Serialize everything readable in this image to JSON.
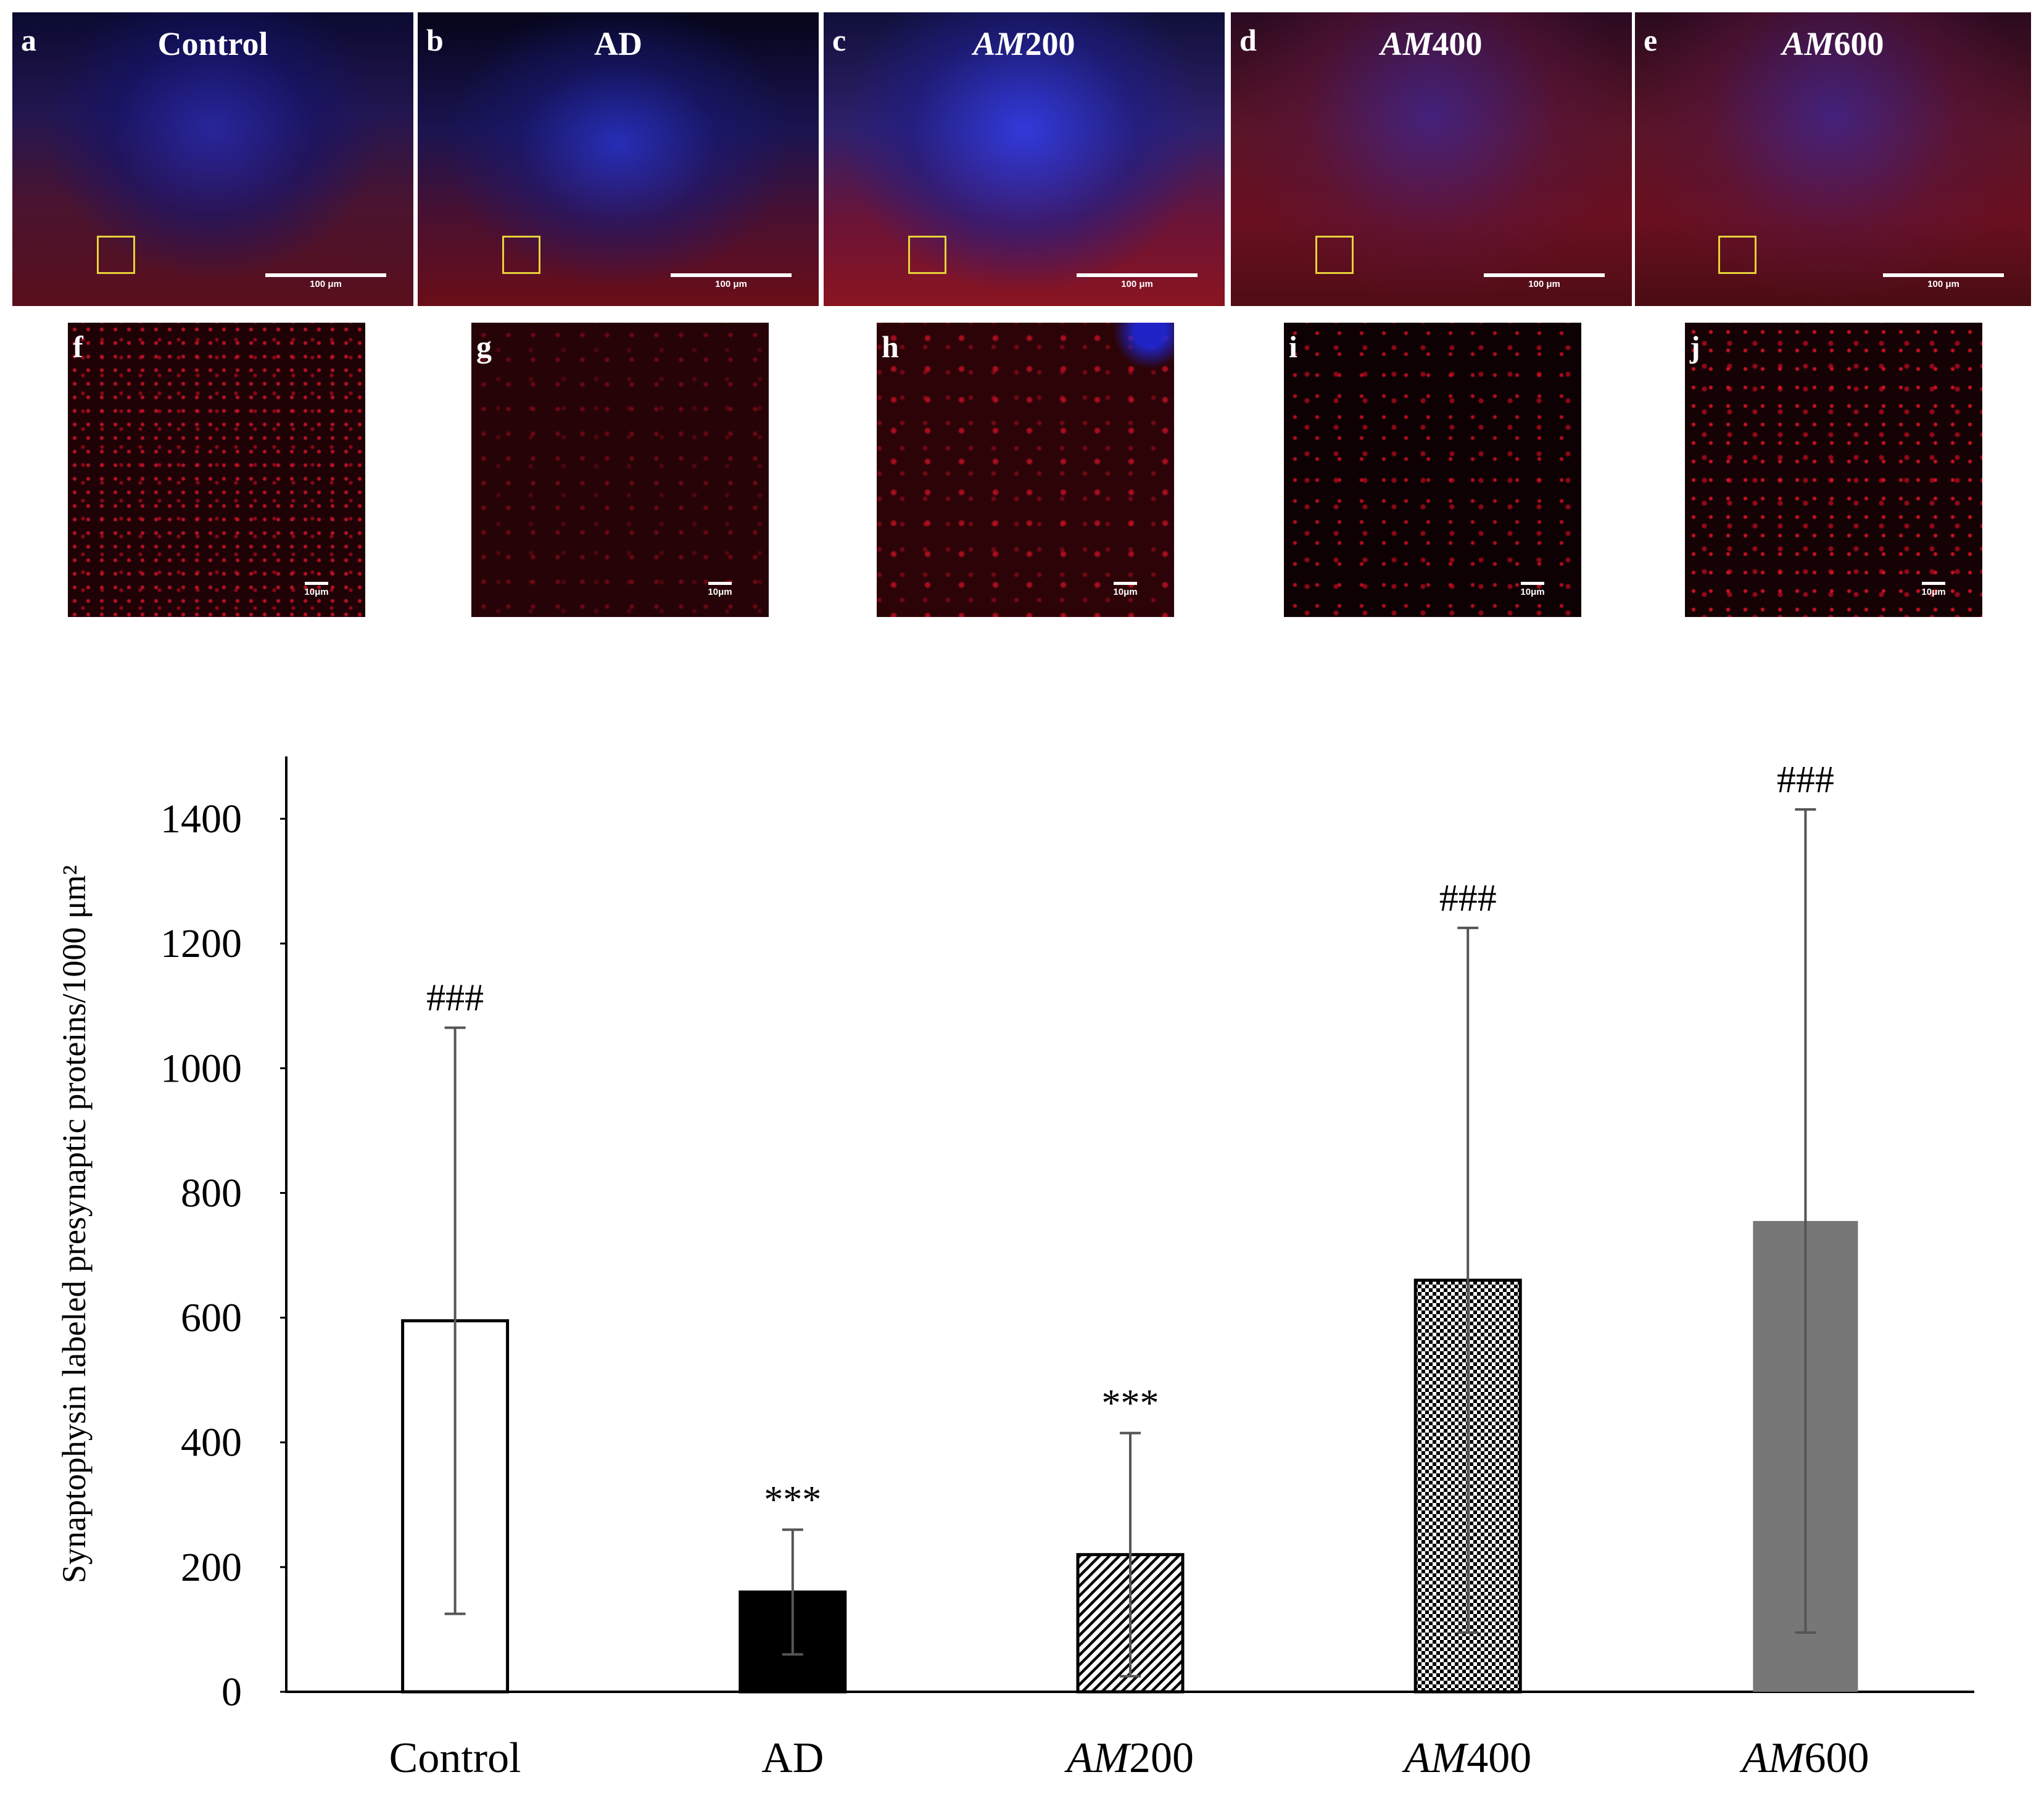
{
  "panels_top": [
    {
      "letter": "a",
      "title": "Control",
      "title_parts": [
        {
          "t": "Control",
          "i": false
        }
      ],
      "scale": "100 μm"
    },
    {
      "letter": "b",
      "title": "AD",
      "title_parts": [
        {
          "t": "AD",
          "i": false
        }
      ],
      "scale": "100 μm"
    },
    {
      "letter": "c",
      "title": "AM200",
      "title_parts": [
        {
          "t": "AM",
          "i": true
        },
        {
          "t": "200",
          "i": false
        }
      ],
      "scale": "100 μm"
    },
    {
      "letter": "d",
      "title": "AM400",
      "title_parts": [
        {
          "t": "AM",
          "i": true
        },
        {
          "t": "400",
          "i": false
        }
      ],
      "scale": "100 μm"
    },
    {
      "letter": "e",
      "title": "AM600",
      "title_parts": [
        {
          "t": "AM",
          "i": true
        },
        {
          "t": "600",
          "i": false
        }
      ],
      "scale": "100 μm"
    }
  ],
  "panels_zoom": [
    {
      "letter": "f",
      "scale": "10μm"
    },
    {
      "letter": "g",
      "scale": "10μm"
    },
    {
      "letter": "h",
      "scale": "10μm"
    },
    {
      "letter": "i",
      "scale": "10μm"
    },
    {
      "letter": "j",
      "scale": "10μm"
    }
  ],
  "chart_data": {
    "type": "bar",
    "categories": [
      "Control",
      "AD",
      "AM200",
      "AM400",
      "AM600"
    ],
    "category_parts": [
      [
        {
          "t": "Control",
          "i": false
        }
      ],
      [
        {
          "t": "AD",
          "i": false
        }
      ],
      [
        {
          "t": "AM",
          "i": true
        },
        {
          "t": "200",
          "i": false
        }
      ],
      [
        {
          "t": "AM",
          "i": true
        },
        {
          "t": "400",
          "i": false
        }
      ],
      [
        {
          "t": "AM",
          "i": true
        },
        {
          "t": "600",
          "i": false
        }
      ]
    ],
    "values": [
      595,
      160,
      220,
      660,
      755
    ],
    "error": [
      470,
      100,
      195,
      565,
      660
    ],
    "annotations": [
      "###",
      "***",
      "***",
      "###",
      "###"
    ],
    "fills": [
      "white",
      "black",
      "diagonal",
      "checker",
      "gray"
    ],
    "ylabel": "Synaptophysin labeled presynaptic proteins/1000 μm²",
    "ylim": [
      0,
      1500
    ],
    "yticks": [
      0,
      200,
      400,
      600,
      800,
      1000,
      1200,
      1400
    ],
    "colors": {
      "bar_gray": "#777777",
      "error": "#555555",
      "axis": "#000000"
    }
  }
}
